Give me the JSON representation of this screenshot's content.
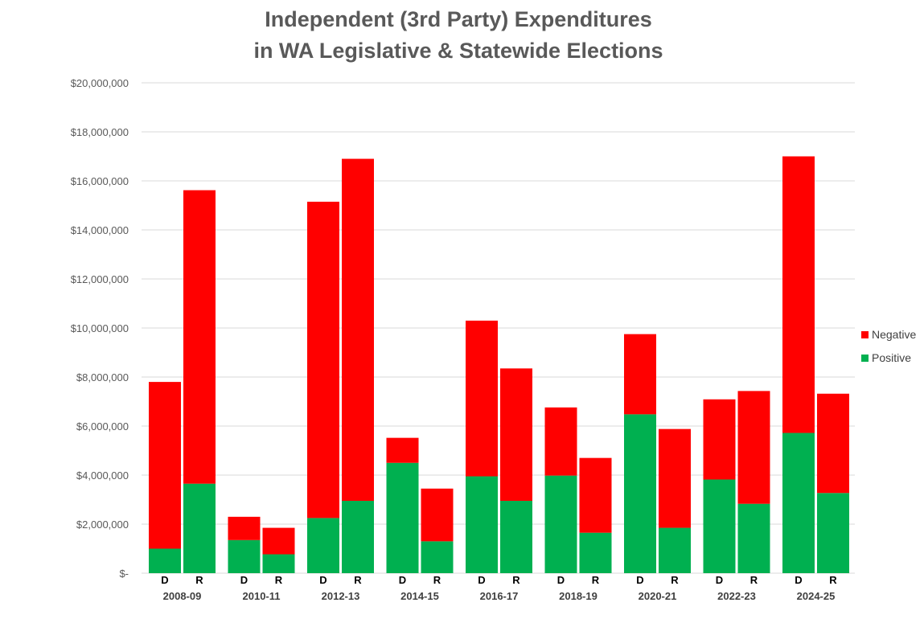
{
  "chart_data": {
    "type": "bar",
    "stacked": true,
    "title": [
      "Independent (3rd Party) Expenditures",
      "in WA Legislative & Statewide Elections"
    ],
    "xlabel": "",
    "ylabel": "",
    "ylim": [
      0,
      20000000
    ],
    "y_ticks": [
      {
        "value": 0,
        "label": "$-"
      },
      {
        "value": 2000000,
        "label": "$2,000,000"
      },
      {
        "value": 4000000,
        "label": "$4,000,000"
      },
      {
        "value": 6000000,
        "label": "$6,000,000"
      },
      {
        "value": 8000000,
        "label": "$8,000,000"
      },
      {
        "value": 10000000,
        "label": "$10,000,000"
      },
      {
        "value": 12000000,
        "label": "$12,000,000"
      },
      {
        "value": 14000000,
        "label": "$14,000,000"
      },
      {
        "value": 16000000,
        "label": "$16,000,000"
      },
      {
        "value": 18000000,
        "label": "$18,000,000"
      },
      {
        "value": 20000000,
        "label": "$20,000,000"
      }
    ],
    "grid": true,
    "legend_position": "right",
    "series": [
      {
        "name": "Positive",
        "color": "#00b050"
      },
      {
        "name": "Negative",
        "color": "#ff0000"
      }
    ],
    "legend_order": [
      "Negative",
      "Positive"
    ],
    "groups": [
      {
        "label": "2008-09",
        "bars": [
          {
            "label": "D",
            "positive": 1000000,
            "negative": 6800000
          },
          {
            "label": "R",
            "positive": 3650000,
            "negative": 11970000
          }
        ]
      },
      {
        "label": "2010-11",
        "bars": [
          {
            "label": "D",
            "positive": 1350000,
            "negative": 950000
          },
          {
            "label": "R",
            "positive": 770000,
            "negative": 1080000
          }
        ]
      },
      {
        "label": "2012-13",
        "bars": [
          {
            "label": "D",
            "positive": 2250000,
            "negative": 12900000
          },
          {
            "label": "R",
            "positive": 2950000,
            "negative": 13950000
          }
        ]
      },
      {
        "label": "2014-15",
        "bars": [
          {
            "label": "D",
            "positive": 4500000,
            "negative": 1020000
          },
          {
            "label": "R",
            "positive": 1300000,
            "negative": 2150000
          }
        ]
      },
      {
        "label": "2016-17",
        "bars": [
          {
            "label": "D",
            "positive": 3950000,
            "negative": 6350000
          },
          {
            "label": "R",
            "positive": 2950000,
            "negative": 5400000
          }
        ]
      },
      {
        "label": "2018-19",
        "bars": [
          {
            "label": "D",
            "positive": 3980000,
            "negative": 2780000
          },
          {
            "label": "R",
            "positive": 1650000,
            "negative": 3050000
          }
        ]
      },
      {
        "label": "2020-21",
        "bars": [
          {
            "label": "D",
            "positive": 6480000,
            "negative": 3270000
          },
          {
            "label": "R",
            "positive": 1850000,
            "negative": 4030000
          }
        ]
      },
      {
        "label": "2022-23",
        "bars": [
          {
            "label": "D",
            "positive": 3820000,
            "negative": 3270000
          },
          {
            "label": "R",
            "positive": 2830000,
            "negative": 4600000
          }
        ]
      },
      {
        "label": "2024-25",
        "bars": [
          {
            "label": "D",
            "positive": 5720000,
            "negative": 11280000
          },
          {
            "label": "R",
            "positive": 3270000,
            "negative": 4050000
          }
        ]
      }
    ]
  }
}
